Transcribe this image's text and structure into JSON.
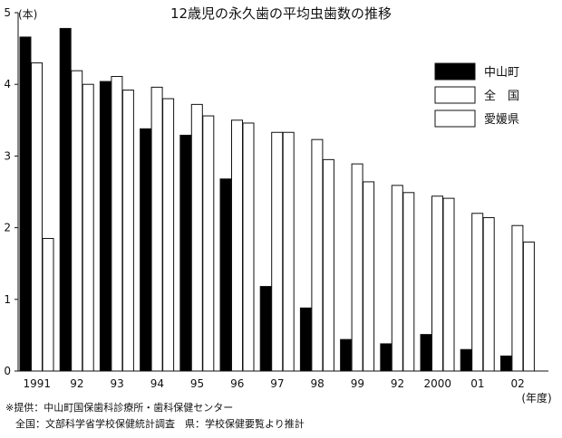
{
  "chart_data": {
    "type": "bar",
    "title": "12歳児の永久歯の平均虫歯数の推移",
    "ylabel": "(本)",
    "xlabel": "(年度)",
    "ylim": [
      0,
      5
    ],
    "yticks": [
      "0",
      "1",
      "2",
      "3",
      "4",
      "5"
    ],
    "categories": [
      "1991",
      "92",
      "93",
      "94",
      "95",
      "96",
      "97",
      "98",
      "99",
      "92",
      "2000",
      "01",
      "02"
    ],
    "series": [
      {
        "name": "中山町",
        "values": [
          4.66,
          4.78,
          4.04,
          3.38,
          3.29,
          2.68,
          1.18,
          0.88,
          0.44,
          0.38,
          0.51,
          0.3,
          0.21
        ]
      },
      {
        "name": "全　国",
        "values": [
          4.3,
          4.19,
          4.11,
          3.96,
          3.72,
          3.5,
          3.33,
          3.23,
          2.89,
          2.59,
          2.44,
          2.2,
          2.03
        ]
      },
      {
        "name": "愛媛県",
        "values": [
          1.85,
          4.0,
          3.92,
          3.8,
          3.56,
          3.46,
          3.33,
          2.95,
          2.64,
          2.49,
          2.41,
          2.14,
          1.8
        ]
      }
    ],
    "colors": {
      "中山町": "#000000",
      "全　国": "#ffffff",
      "愛媛県": "#ffffff"
    },
    "legend_position": "top-right",
    "grid": false
  },
  "source": {
    "line1": "※提供：中山町国保歯科診療所・歯科保健センター",
    "line2": "　全国：文部科学省学校保健統計調査　県：学校保健要覧より推計"
  }
}
